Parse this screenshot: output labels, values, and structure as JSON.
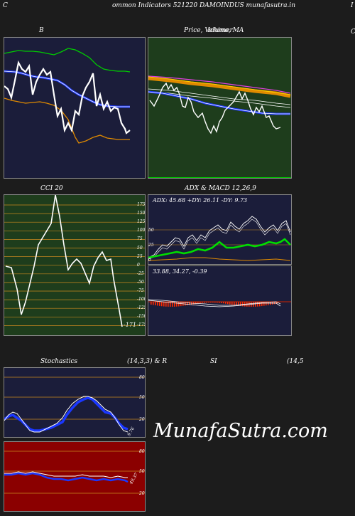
{
  "header": {
    "left": "C",
    "center": "ommon  Indicators 521220  DAMOINDUS munafasutra.in",
    "right": "I"
  },
  "panels": {
    "bollinger": {
      "title": "B",
      "side_label": "C"
    },
    "price": {
      "title_price": "Price,",
      "title_volume": "Volume,",
      "title_ma": "MA",
      "title_overlap": "Ichimer"
    },
    "cci": {
      "title": "CCI 20",
      "ticks": [
        "175",
        "150",
        "125",
        "100",
        "75",
        "50",
        "25",
        "0",
        "-25",
        "-50",
        "-75",
        "-100",
        "-125",
        "-150",
        "-175"
      ],
      "last_value": "-171"
    },
    "adx": {
      "title": "ADX  & MACD 12,26,9",
      "readout": "ADX: 45.68  +DY: 26.11 -DY: 9.73",
      "ticks": [
        "50",
        "25",
        "0"
      ]
    },
    "macd": {
      "readout": "33.88,  34.27,  -0.39"
    },
    "stochastics": {
      "title_left": "Stochastics",
      "title_params": "(14,3,3) & R",
      "ticks": [
        "80",
        "50",
        "20"
      ],
      "last_value": "9.76"
    },
    "rsi": {
      "title": "SI",
      "title_params": "(14,5",
      "ticks": [
        "80",
        "50",
        "20"
      ],
      "last_value": "49.37"
    }
  },
  "watermark": "MunafaSutra.com",
  "colors": {
    "panel_navy": "#1b1d3a",
    "panel_green": "#1e3d1c",
    "panel_red": "#8b0000",
    "line_white": "#ffffff",
    "line_blue": "#1a37ff",
    "line_orange": "#e08a00",
    "line_green": "#00cc00",
    "grid_orange": "#c8881e"
  }
}
